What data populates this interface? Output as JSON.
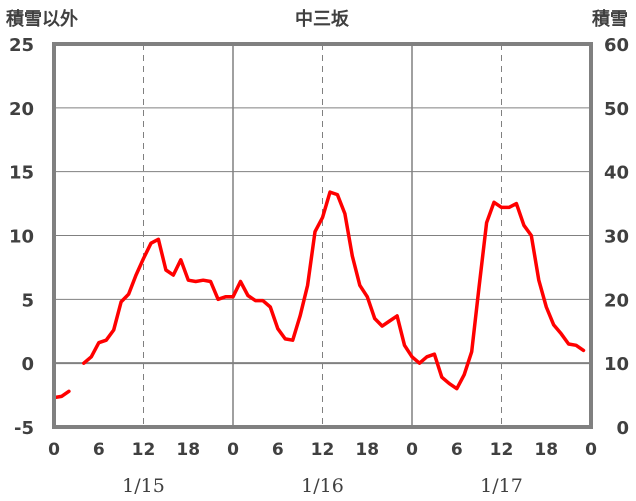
{
  "chart_data": {
    "type": "line",
    "title": "中三坂",
    "ylabel_left": "積雪以外",
    "ylabel_right": "積雪",
    "ylim_left": [
      -5,
      25
    ],
    "ylim_right": [
      0,
      60
    ],
    "yticks_left": [
      "25",
      "20",
      "15",
      "10",
      "5",
      "0",
      "-5"
    ],
    "yticks_right": [
      "60",
      "50",
      "40",
      "30",
      "20",
      "10",
      "0"
    ],
    "xlim": [
      0,
      72
    ],
    "xtick_labels": [
      "0",
      "6",
      "12",
      "18",
      "0",
      "6",
      "12",
      "18",
      "0",
      "6",
      "12",
      "18",
      "0"
    ],
    "date_labels": [
      "1/15",
      "1/16",
      "1/17"
    ],
    "colors": {
      "temperature": "#ff0000",
      "snow": "#7030a0",
      "frame": "#808080",
      "zero_line": "#808080",
      "grid_major": "#808080",
      "grid_minor": "#808080"
    },
    "series": [
      {
        "axis": "left",
        "color": "#ff0000",
        "x": [
          0,
          1,
          2,
          null,
          4,
          5,
          6,
          7,
          8,
          9,
          10,
          11,
          12,
          13,
          14,
          15,
          16,
          17,
          18,
          19,
          20,
          21,
          22,
          23,
          24,
          25,
          26,
          27,
          28,
          29,
          30,
          31,
          32,
          33,
          34,
          35,
          36,
          37,
          38,
          39,
          40,
          41,
          42,
          43,
          44,
          45,
          46,
          47,
          48,
          49,
          50,
          51,
          52,
          53,
          54,
          55,
          56,
          57,
          58,
          59,
          60,
          61,
          62,
          63,
          64,
          65,
          66,
          67,
          68,
          69,
          70,
          71,
          72
        ],
        "values": [
          -2.7,
          -2.6,
          -2.2,
          null,
          0.0,
          0.5,
          1.6,
          1.8,
          2.6,
          4.8,
          5.4,
          6.9,
          8.2,
          9.4,
          9.7,
          7.3,
          6.9,
          8.1,
          6.5,
          6.4,
          6.5,
          6.4,
          5.0,
          5.2,
          5.2,
          6.4,
          5.3,
          4.9,
          4.9,
          4.4,
          2.7,
          1.9,
          1.8,
          3.7,
          6.1,
          10.3,
          11.4,
          13.4,
          13.2,
          11.7,
          8.4,
          6.1,
          5.2,
          3.5,
          2.9,
          3.3,
          3.7,
          1.4,
          0.5,
          0.0,
          0.5,
          0.7,
          -1.1,
          -1.6,
          -2.0,
          -0.9,
          0.9,
          6.0,
          11.0,
          12.6,
          12.2,
          12.2,
          12.5,
          10.8,
          10.0,
          6.5,
          4.4,
          3.0,
          2.3,
          1.5,
          1.4,
          1.0,
          null
        ]
      },
      {
        "axis": "right",
        "color": "#7030a0",
        "x": [
          0,
          72
        ],
        "values": [
          0,
          0
        ]
      }
    ]
  }
}
